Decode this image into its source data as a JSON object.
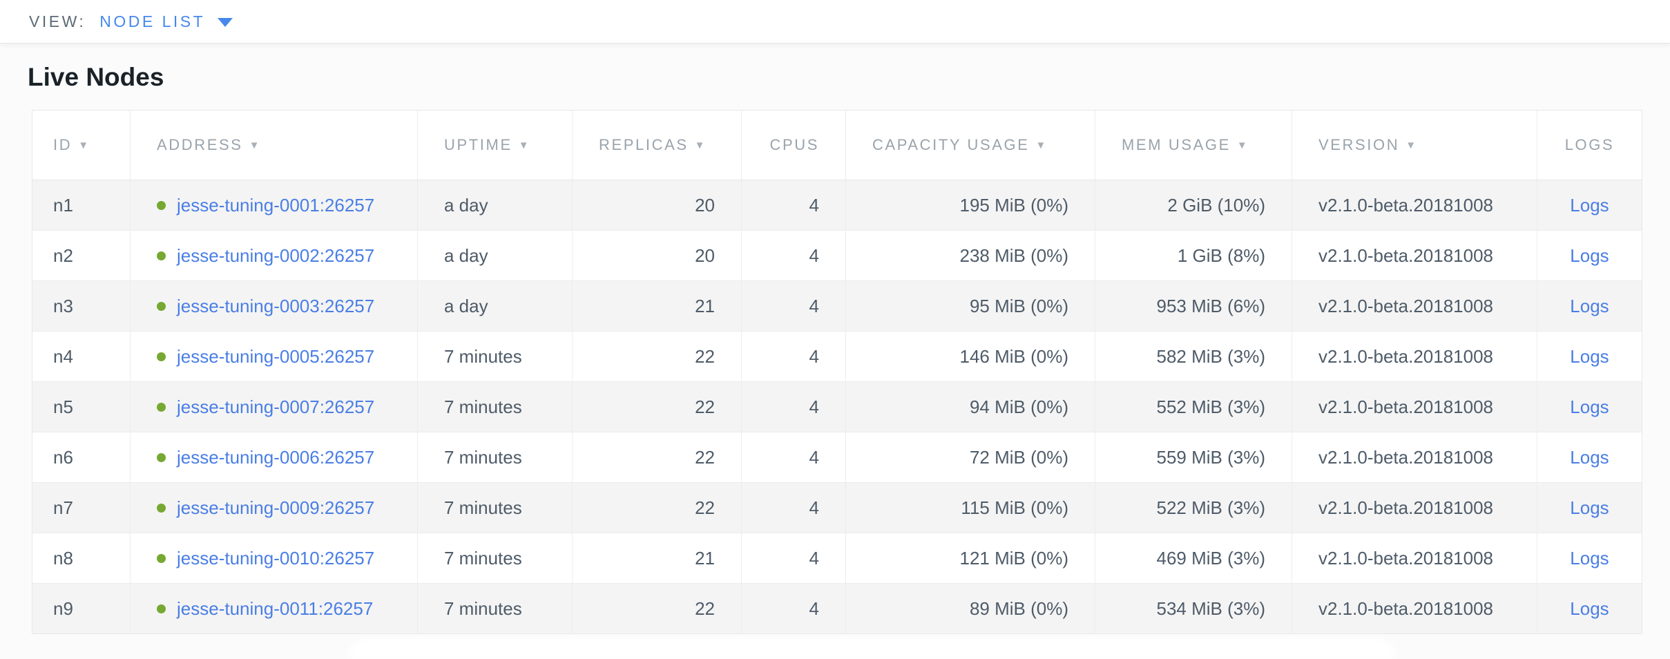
{
  "view_bar": {
    "label": "VIEW:",
    "selected": "NODE LIST"
  },
  "page": {
    "title": "Live Nodes"
  },
  "table": {
    "columns": [
      {
        "key": "id",
        "label": "ID",
        "sortable": true
      },
      {
        "key": "address",
        "label": "ADDRESS",
        "sortable": true
      },
      {
        "key": "uptime",
        "label": "UPTIME",
        "sortable": true
      },
      {
        "key": "replicas",
        "label": "REPLICAS",
        "sortable": true
      },
      {
        "key": "cpus",
        "label": "CPUS",
        "sortable": false
      },
      {
        "key": "capacity_usage",
        "label": "CAPACITY USAGE",
        "sortable": true
      },
      {
        "key": "mem_usage",
        "label": "MEM USAGE",
        "sortable": true
      },
      {
        "key": "version",
        "label": "VERSION",
        "sortable": true
      },
      {
        "key": "logs",
        "label": "LOGS",
        "sortable": false
      }
    ],
    "rows": [
      {
        "id": "n1",
        "status": "live",
        "address": "jesse-tuning-0001:26257",
        "uptime": "a day",
        "replicas": "20",
        "cpus": "4",
        "capacity_usage": "195 MiB (0%)",
        "mem_usage": "2 GiB (10%)",
        "version": "v2.1.0-beta.20181008",
        "logs_label": "Logs"
      },
      {
        "id": "n2",
        "status": "live",
        "address": "jesse-tuning-0002:26257",
        "uptime": "a day",
        "replicas": "20",
        "cpus": "4",
        "capacity_usage": "238 MiB (0%)",
        "mem_usage": "1 GiB (8%)",
        "version": "v2.1.0-beta.20181008",
        "logs_label": "Logs"
      },
      {
        "id": "n3",
        "status": "live",
        "address": "jesse-tuning-0003:26257",
        "uptime": "a day",
        "replicas": "21",
        "cpus": "4",
        "capacity_usage": "95 MiB (0%)",
        "mem_usage": "953 MiB (6%)",
        "version": "v2.1.0-beta.20181008",
        "logs_label": "Logs"
      },
      {
        "id": "n4",
        "status": "live",
        "address": "jesse-tuning-0005:26257",
        "uptime": "7 minutes",
        "replicas": "22",
        "cpus": "4",
        "capacity_usage": "146 MiB (0%)",
        "mem_usage": "582 MiB (3%)",
        "version": "v2.1.0-beta.20181008",
        "logs_label": "Logs"
      },
      {
        "id": "n5",
        "status": "live",
        "address": "jesse-tuning-0007:26257",
        "uptime": "7 minutes",
        "replicas": "22",
        "cpus": "4",
        "capacity_usage": "94 MiB (0%)",
        "mem_usage": "552 MiB (3%)",
        "version": "v2.1.0-beta.20181008",
        "logs_label": "Logs"
      },
      {
        "id": "n6",
        "status": "live",
        "address": "jesse-tuning-0006:26257",
        "uptime": "7 minutes",
        "replicas": "22",
        "cpus": "4",
        "capacity_usage": "72 MiB (0%)",
        "mem_usage": "559 MiB (3%)",
        "version": "v2.1.0-beta.20181008",
        "logs_label": "Logs"
      },
      {
        "id": "n7",
        "status": "live",
        "address": "jesse-tuning-0009:26257",
        "uptime": "7 minutes",
        "replicas": "22",
        "cpus": "4",
        "capacity_usage": "115 MiB (0%)",
        "mem_usage": "522 MiB (3%)",
        "version": "v2.1.0-beta.20181008",
        "logs_label": "Logs"
      },
      {
        "id": "n8",
        "status": "live",
        "address": "jesse-tuning-0010:26257",
        "uptime": "7 minutes",
        "replicas": "21",
        "cpus": "4",
        "capacity_usage": "121 MiB (0%)",
        "mem_usage": "469 MiB (3%)",
        "version": "v2.1.0-beta.20181008",
        "logs_label": "Logs"
      },
      {
        "id": "n9",
        "status": "live",
        "address": "jesse-tuning-0011:26257",
        "uptime": "7 minutes",
        "replicas": "22",
        "cpus": "4",
        "capacity_usage": "89 MiB (0%)",
        "mem_usage": "534 MiB (3%)",
        "version": "v2.1.0-beta.20181008",
        "logs_label": "Logs"
      }
    ]
  },
  "icons": {
    "sort_desc": "▼",
    "dropdown_caret": "▼",
    "live_status_dot": "●"
  },
  "colors": {
    "accent_blue": "#4688ec",
    "link_blue": "#4a7ee5",
    "live_dot_green": "#76a832",
    "row_stripe": "#f4f4f4",
    "header_text": "#9aa3ab",
    "cell_text": "#4e5b68"
  }
}
